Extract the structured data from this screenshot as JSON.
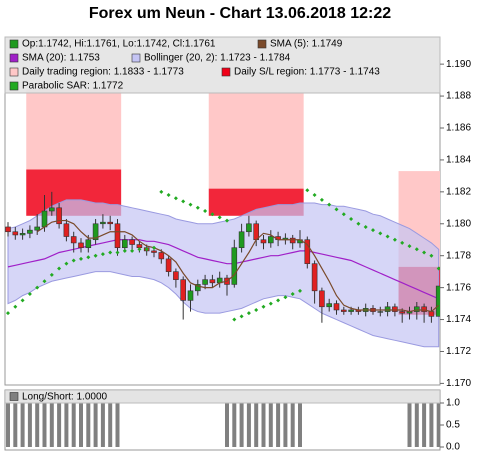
{
  "chart_data": [
    {
      "type": "candlestick",
      "title": "Forex um Neun - Chart 13.06.2018 12:22",
      "ylim": [
        1.1699,
        1.1917
      ],
      "yticks": [
        {
          "value": 1.17,
          "label": "1.170"
        },
        1.172,
        1.174,
        1.176,
        1.178,
        {
          "value": 1.18,
          "label": "1.180"
        },
        1.182,
        1.184,
        1.186,
        1.188,
        {
          "value": 1.19,
          "label": "1.190"
        }
      ],
      "ohlc_name": "Op:1.1742, Hi:1.1761, Lo:1.1742, Cl:1.1761",
      "up_color": "#1f9a1f",
      "down_color": "#e02020",
      "open": [
        1.1798,
        1.1795,
        1.1793,
        1.1794,
        1.1796,
        1.1798,
        1.1808,
        1.181,
        1.18,
        1.1792,
        1.1788,
        1.1785,
        1.179,
        1.18,
        1.1801,
        1.18,
        1.1785,
        1.179,
        1.1787,
        1.1785,
        1.1783,
        1.1782,
        1.1778,
        1.177,
        1.1765,
        1.1752,
        1.1758,
        1.1762,
        1.1765,
        1.1763,
        1.1766,
        1.1762,
        1.1785,
        1.1795,
        1.18,
        1.179,
        1.1788,
        1.1792,
        1.179,
        1.1791,
        1.1788,
        1.179,
        1.1775,
        1.1758,
        1.1748,
        1.175,
        1.1746,
        1.1745,
        1.1746,
        1.1745,
        1.1747,
        1.1745,
        1.1745,
        1.1748,
        1.1745,
        1.1744,
        1.1745,
        1.1748,
        1.1745,
        1.1742
      ],
      "high": [
        1.1801,
        1.1798,
        1.1797,
        1.1799,
        1.1806,
        1.1818,
        1.182,
        1.1813,
        1.1803,
        1.1795,
        1.1791,
        1.1793,
        1.1803,
        1.1806,
        1.1805,
        1.1803,
        1.1793,
        1.1792,
        1.1789,
        1.1787,
        1.1786,
        1.1784,
        1.178,
        1.1772,
        1.1767,
        1.1762,
        1.1765,
        1.1768,
        1.1768,
        1.177,
        1.1768,
        1.179,
        1.18,
        1.1805,
        1.1802,
        1.1793,
        1.1796,
        1.1795,
        1.1794,
        1.1793,
        1.1796,
        1.1792,
        1.1777,
        1.176,
        1.1753,
        1.1752,
        1.1748,
        1.1748,
        1.1748,
        1.175,
        1.1749,
        1.1748,
        1.1751,
        1.175,
        1.1747,
        1.1748,
        1.1751,
        1.175,
        1.1748,
        1.1761
      ],
      "low": [
        1.1792,
        1.179,
        1.179,
        1.1791,
        1.1793,
        1.1795,
        1.1805,
        1.1797,
        1.1789,
        1.1782,
        1.1782,
        1.1782,
        1.1787,
        1.1797,
        1.1796,
        1.178,
        1.1782,
        1.1784,
        1.1782,
        1.178,
        1.1779,
        1.1775,
        1.1767,
        1.176,
        1.174,
        1.1745,
        1.1755,
        1.1759,
        1.176,
        1.176,
        1.1755,
        1.176,
        1.1782,
        1.1792,
        1.1786,
        1.1784,
        1.1785,
        1.1786,
        1.1787,
        1.1784,
        1.1785,
        1.1772,
        1.175,
        1.1738,
        1.1745,
        1.1743,
        1.1743,
        1.1743,
        1.1743,
        1.1742,
        1.1743,
        1.1742,
        1.1742,
        1.1742,
        1.1738,
        1.174,
        1.174,
        1.1738,
        1.1738,
        1.1742
      ],
      "close": [
        1.1795,
        1.1793,
        1.1794,
        1.1796,
        1.1798,
        1.1808,
        1.181,
        1.18,
        1.1792,
        1.1788,
        1.1785,
        1.179,
        1.18,
        1.1801,
        1.18,
        1.1785,
        1.179,
        1.1787,
        1.1785,
        1.1783,
        1.1782,
        1.1778,
        1.177,
        1.1765,
        1.1752,
        1.1758,
        1.1762,
        1.1765,
        1.1763,
        1.1766,
        1.1762,
        1.1785,
        1.1795,
        1.18,
        1.179,
        1.1788,
        1.1792,
        1.179,
        1.1791,
        1.1788,
        1.179,
        1.1775,
        1.1758,
        1.1748,
        1.175,
        1.1746,
        1.1745,
        1.1746,
        1.1745,
        1.1747,
        1.1745,
        1.1745,
        1.1748,
        1.1745,
        1.1744,
        1.1745,
        1.1748,
        1.1745,
        1.1742,
        1.1761
      ],
      "lines": [
        {
          "name": "SMA (5): 1.1749",
          "color": "#7a4a2a",
          "values": [
            null,
            null,
            null,
            null,
            1.1795,
            1.1798,
            1.1801,
            1.1802,
            1.1802,
            1.18,
            1.1795,
            1.1791,
            1.1791,
            1.1793,
            1.1795,
            1.1795,
            1.1795,
            1.1793,
            1.1789,
            1.1786,
            1.1785,
            1.1783,
            1.178,
            1.1776,
            1.1769,
            1.1763,
            1.1761,
            1.176,
            1.176,
            1.1763,
            1.1764,
            1.1768,
            1.1775,
            1.1782,
            1.179,
            1.1794,
            1.1793,
            1.179,
            1.179,
            1.179,
            1.179,
            1.1787,
            1.178,
            1.1772,
            1.1764,
            1.1755,
            1.1749,
            1.1747,
            1.1746,
            1.1746,
            1.1746,
            1.1746,
            1.1746,
            1.1746,
            1.1746,
            1.1745,
            1.1746,
            1.1746,
            1.1745,
            1.1749
          ]
        },
        {
          "name": "SMA (20): 1.1753",
          "color": "#a020c8",
          "values": [
            1.1773,
            1.1774,
            1.1775,
            1.1776,
            1.1777,
            1.1778,
            1.178,
            1.1782,
            1.1783,
            1.1784,
            1.1785,
            1.1786,
            1.1787,
            1.1788,
            1.1789,
            1.179,
            1.179,
            1.179,
            1.179,
            1.1789,
            1.1789,
            1.1788,
            1.1787,
            1.1785,
            1.1783,
            1.1781,
            1.1779,
            1.1778,
            1.1777,
            1.1776,
            1.1775,
            1.1775,
            1.1776,
            1.1777,
            1.1778,
            1.1779,
            1.178,
            1.178,
            1.1781,
            1.1782,
            1.1783,
            1.1783,
            1.1782,
            1.1781,
            1.178,
            1.1779,
            1.1778,
            1.1777,
            1.1775,
            1.1773,
            1.1771,
            1.1769,
            1.1767,
            1.1765,
            1.1763,
            1.1761,
            1.1759,
            1.1757,
            1.1755,
            1.1753
          ]
        }
      ],
      "band": {
        "name": "Bollinger (20, 2): 1.1723 - 1.1784",
        "color": "#c4c4f4",
        "edge": "#9a9ae0",
        "upper": [
          1.1797,
          1.1798,
          1.18,
          1.1802,
          1.1805,
          1.1808,
          1.1811,
          1.1813,
          1.1815,
          1.1815,
          1.1815,
          1.1814,
          1.1813,
          1.1813,
          1.1812,
          1.1812,
          1.1811,
          1.181,
          1.1809,
          1.1808,
          1.1807,
          1.1806,
          1.1805,
          1.1803,
          1.1802,
          1.1801,
          1.18,
          1.18,
          1.18,
          1.1801,
          1.1802,
          1.1803,
          1.1805,
          1.1807,
          1.1809,
          1.181,
          1.1811,
          1.1812,
          1.1812,
          1.1812,
          1.1813,
          1.1813,
          1.1813,
          1.1812,
          1.1812,
          1.1811,
          1.1811,
          1.181,
          1.1809,
          1.1808,
          1.1806,
          1.1805,
          1.1803,
          1.1801,
          1.1799,
          1.1797,
          1.1794,
          1.1791,
          1.1788,
          1.1784
        ],
        "lower": [
          1.175,
          1.1752,
          1.1755,
          1.1757,
          1.176,
          1.1762,
          1.1764,
          1.1765,
          1.1766,
          1.1767,
          1.1768,
          1.1769,
          1.177,
          1.177,
          1.177,
          1.1769,
          1.1768,
          1.1767,
          1.1767,
          1.1766,
          1.1765,
          1.1763,
          1.176,
          1.1756,
          1.1751,
          1.1747,
          1.1745,
          1.1744,
          1.1744,
          1.1744,
          1.1745,
          1.1746,
          1.1747,
          1.1749,
          1.1751,
          1.1753,
          1.1754,
          1.1755,
          1.1755,
          1.1754,
          1.1753,
          1.175,
          1.1747,
          1.1744,
          1.1742,
          1.174,
          1.1738,
          1.1736,
          1.1734,
          1.1732,
          1.173,
          1.1729,
          1.1728,
          1.1727,
          1.1726,
          1.1725,
          1.1724,
          1.1723,
          1.1723,
          1.1723
        ]
      },
      "regions": {
        "trading_name": "Daily trading region: 1.1833 - 1.1773",
        "trading_color": "#ffc8c8",
        "sl_name": "Daily S/L region: 1.1773 - 1.1743",
        "sl_color": "#f00018",
        "days": [
          {
            "start": 3,
            "end": 15,
            "trading": [
              1.1834,
              1.1884
            ],
            "sl": [
              1.1805,
              1.1834
            ]
          },
          {
            "start": 28,
            "end": 40,
            "trading": [
              1.1822,
              1.1882
            ],
            "sl": [
              1.1805,
              1.1822
            ]
          },
          {
            "start": 54,
            "end": 59,
            "trading": [
              1.1773,
              1.1833
            ],
            "sl": [
              1.1743,
              1.1773
            ]
          }
        ]
      },
      "sar": {
        "name": "Parabolic SAR: 1.1772",
        "color": "#22aa22",
        "values": [
          1.1744,
          1.1748,
          1.1752,
          1.1756,
          1.176,
          1.1764,
          1.1768,
          1.1772,
          1.1775,
          1.1777,
          1.1778,
          1.1779,
          1.178,
          1.1781,
          1.1782,
          1.1782,
          1.1783,
          1.1783,
          1.1784,
          1.1784,
          1.1785,
          1.182,
          1.1818,
          1.1816,
          1.1814,
          1.1812,
          1.181,
          1.1808,
          1.1806,
          1.1804,
          1.1802,
          1.174,
          1.1742,
          1.1744,
          1.1746,
          1.1748,
          1.175,
          1.1752,
          1.1754,
          1.1756,
          1.1758,
          1.1821,
          1.1818,
          1.1815,
          1.1812,
          1.1809,
          1.1806,
          1.1803,
          1.18,
          1.1798,
          1.1796,
          1.1794,
          1.1792,
          1.179,
          1.1788,
          1.1786,
          1.1784,
          1.1782,
          1.178,
          1.1772
        ]
      }
    },
    {
      "type": "bar",
      "name": "Long/Short: 1.0000",
      "color": "#808080",
      "ylim": [
        0,
        1.25
      ],
      "yticks": [
        {
          "value": 0,
          "label": "0.0"
        },
        0.5,
        {
          "value": 1,
          "label": "1.0"
        }
      ],
      "values": [
        1,
        1,
        1,
        1,
        1,
        1,
        1,
        1,
        1,
        1,
        1,
        1,
        1,
        1,
        1,
        1,
        0,
        0,
        0,
        0,
        0,
        0,
        0,
        0,
        0,
        0,
        0,
        0,
        0,
        0,
        1,
        1,
        1,
        1,
        1,
        1,
        1,
        1,
        1,
        1,
        1,
        0,
        0,
        0,
        0,
        0,
        0,
        0,
        0,
        0,
        0,
        0,
        0,
        0,
        0,
        1,
        1,
        1,
        1,
        1
      ]
    }
  ]
}
